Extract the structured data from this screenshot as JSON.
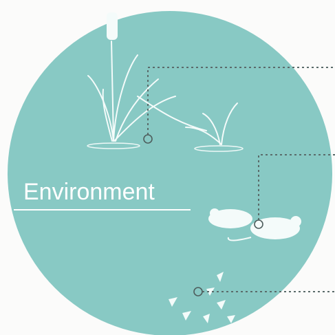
{
  "label": "Environment"
}
